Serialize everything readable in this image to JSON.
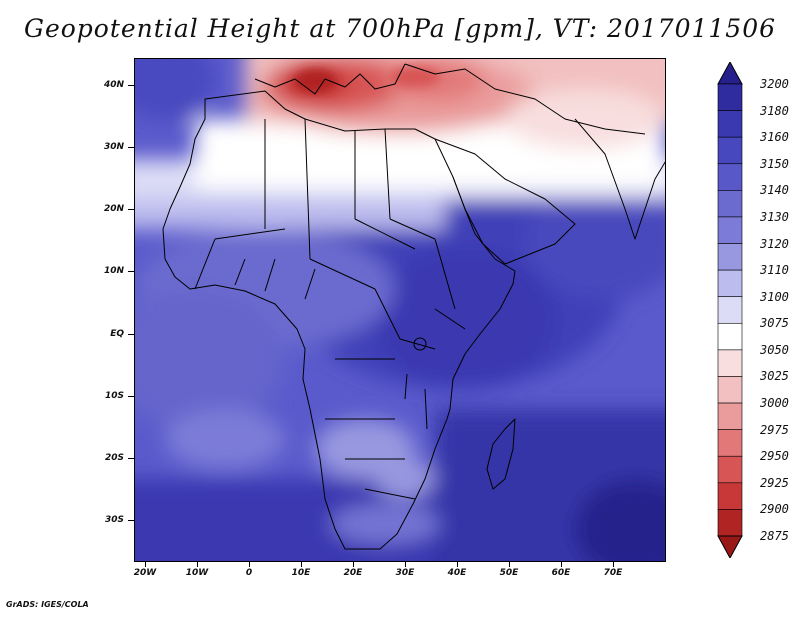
{
  "title": "Geopotential Height at 700hPa [gpm], VT: 2017011506",
  "footer": "GrADS: IGES/COLA",
  "lat_labels": [
    "40N",
    "30N",
    "20N",
    "10N",
    "EQ",
    "10S",
    "20S",
    "30S"
  ],
  "lon_labels": [
    "20W",
    "10W",
    "0",
    "10E",
    "20E",
    "30E",
    "40E",
    "50E",
    "60E",
    "70E"
  ],
  "colorbar": {
    "levels": [
      "3200",
      "3180",
      "3160",
      "3150",
      "3140",
      "3130",
      "3120",
      "3110",
      "3100",
      "3075",
      "3050",
      "3025",
      "3000",
      "2975",
      "2950",
      "2925",
      "2900",
      "2875"
    ],
    "colors": [
      "#25208c",
      "#2e2c9e",
      "#3a39b0",
      "#4848be",
      "#5858c8",
      "#6a6acf",
      "#7c7cd8",
      "#9898e0",
      "#bcbcee",
      "#dcdcf6",
      "#ffffff",
      "#f8dede",
      "#f2c0c0",
      "#ea9c9c",
      "#e27878",
      "#d85555",
      "#c93838",
      "#b02424",
      "#981818"
    ]
  }
}
